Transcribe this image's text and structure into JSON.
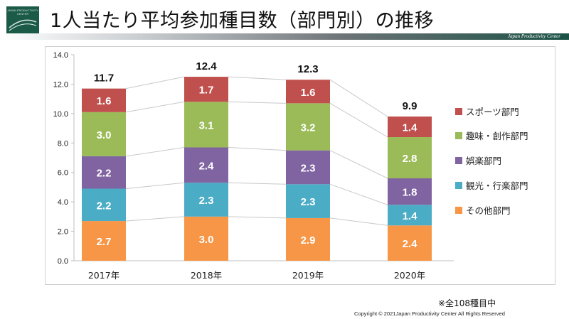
{
  "header": {
    "title": "1人当たり平均参加種目数（部門別）の推移",
    "tagline": "Japan Productivity Center",
    "logo_text": "JAPAN PRODUCTIVITY CENTER",
    "accent_color": "#1b5145"
  },
  "footer": {
    "note": "※全108種目中",
    "copyright": "Copyright © 2021Japan Productivity Center All Rights Reserved"
  },
  "chart_data": {
    "type": "bar",
    "stacked": true,
    "categories": [
      "2017年",
      "2018年",
      "2019年",
      "2020年"
    ],
    "series": [
      {
        "name": "その他部門",
        "color": "#f79646",
        "values": [
          2.7,
          3.0,
          2.9,
          2.4
        ]
      },
      {
        "name": "観光・行楽部門",
        "color": "#4bacc6",
        "values": [
          2.2,
          2.3,
          2.3,
          1.4
        ]
      },
      {
        "name": "娯楽部門",
        "color": "#8064a2",
        "values": [
          2.2,
          2.4,
          2.3,
          1.8
        ]
      },
      {
        "name": "趣味・創作部門",
        "color": "#9bbb59",
        "values": [
          3.0,
          3.1,
          3.2,
          2.8
        ]
      },
      {
        "name": "スポーツ部門",
        "color": "#c0504d",
        "values": [
          1.6,
          1.7,
          1.6,
          1.4
        ]
      }
    ],
    "totals": [
      "11.7",
      "12.4",
      "12.3",
      "9.9"
    ],
    "value_labels": [
      [
        "2.7",
        "3.0",
        "2.9",
        "2.4"
      ],
      [
        "2.2",
        "2.3",
        "2.3",
        "1.4"
      ],
      [
        "2.2",
        "2.4",
        "2.3",
        "1.8"
      ],
      [
        "3.0",
        "3.1",
        "3.2",
        "2.8"
      ],
      [
        "1.6",
        "1.7",
        "1.6",
        "1.4"
      ]
    ],
    "y_ticks": [
      "0.0",
      "2.0",
      "4.0",
      "6.0",
      "8.0",
      "10.0",
      "12.0",
      "14.0"
    ],
    "ylim": [
      0,
      14
    ],
    "grid": false,
    "series_lines": true,
    "legend_position": "right"
  }
}
